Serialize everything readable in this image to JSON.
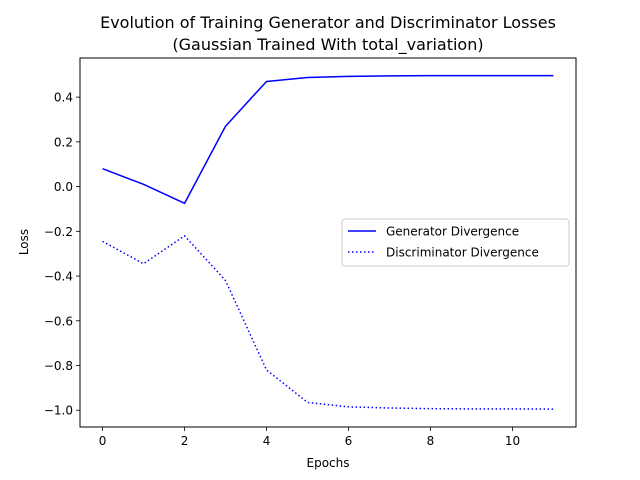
{
  "chart_data": {
    "type": "line",
    "title_line1": "Evolution of Training Generator and Discriminator Losses",
    "title_line2": "(Gaussian Trained With total_variation)",
    "xlabel": "Epochs",
    "ylabel": "Loss",
    "xlim": [
      -0.55,
      11.55
    ],
    "ylim": [
      -1.075,
      0.575
    ],
    "xticks": [
      0,
      2,
      4,
      6,
      8,
      10
    ],
    "yticks": [
      0.4,
      0.2,
      0.0,
      -0.2,
      -0.4,
      -0.6,
      -0.8,
      -1.0
    ],
    "ytick_labels": [
      "0.4",
      "0.2",
      "0.0",
      "−0.2",
      "−0.4",
      "−0.6",
      "−0.8",
      "−1.0"
    ],
    "grid": false,
    "legend_position": "center-right",
    "x": [
      0,
      1,
      2,
      3,
      4,
      5,
      6,
      7,
      8,
      9,
      10,
      11
    ],
    "series": [
      {
        "name": "Generator Divergence",
        "style": "solid",
        "color": "#0000ff",
        "values": [
          0.08,
          0.01,
          -0.075,
          0.27,
          0.47,
          0.488,
          0.493,
          0.495,
          0.496,
          0.496,
          0.496,
          0.496
        ]
      },
      {
        "name": "Discriminator Divergence",
        "style": "dotted",
        "color": "#0000ff",
        "values": [
          -0.245,
          -0.345,
          -0.22,
          -0.42,
          -0.82,
          -0.965,
          -0.985,
          -0.99,
          -0.993,
          -0.994,
          -0.994,
          -0.995
        ]
      }
    ]
  }
}
